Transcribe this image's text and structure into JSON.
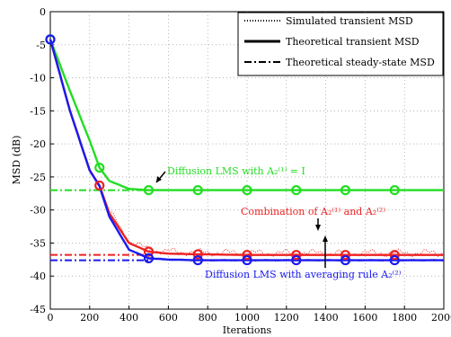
{
  "chart_data": {
    "type": "line",
    "title": "",
    "xlabel": "Iterations",
    "ylabel": "MSD (dB)",
    "xlim": [
      0,
      2000
    ],
    "ylim": [
      -45,
      0
    ],
    "x_ticks": [
      0,
      200,
      400,
      600,
      800,
      1000,
      1200,
      1400,
      1600,
      1800,
      2000
    ],
    "y_ticks": [
      0,
      -5,
      -10,
      -15,
      -20,
      -25,
      -30,
      -35,
      -40,
      -45
    ],
    "grid": true,
    "legend_position": "top-right",
    "legend": [
      {
        "label": "Simulated transient MSD",
        "style": "dotted"
      },
      {
        "label": "Theoretical transient MSD",
        "style": "solid"
      },
      {
        "label": "Theoretical steady-state MSD",
        "style": "dash-dot"
      }
    ],
    "series": [
      {
        "color": "#22dd22",
        "x": [
          0,
          100,
          200,
          250,
          300,
          400,
          500,
          600,
          750,
          1000,
          1250,
          1500,
          1750,
          2000
        ],
        "values": [
          -4.2,
          -12.0,
          -19.5,
          -23.6,
          -25.6,
          -26.8,
          -27.0,
          -27.0,
          -27.0,
          -27.0,
          -27.0,
          -27.0,
          -27.0,
          -27.0
        ],
        "markers_x": [
          0,
          250,
          500,
          750,
          1000,
          1250,
          1500,
          1750
        ],
        "steady_state": -27.0
      },
      {
        "color": "#ee2222",
        "x": [
          0,
          100,
          200,
          250,
          300,
          400,
          500,
          600,
          750,
          1000,
          1250,
          1500,
          1750,
          2000
        ],
        "values": [
          -4.2,
          -15.0,
          -24.0,
          -26.3,
          -30.5,
          -35.0,
          -36.3,
          -36.6,
          -36.7,
          -36.8,
          -36.8,
          -36.8,
          -36.8,
          -36.8
        ],
        "markers_x": [
          250,
          500,
          750,
          1000,
          1250,
          1500,
          1750
        ],
        "steady_state": -36.8
      },
      {
        "color": "#1a1aee",
        "x": [
          0,
          100,
          200,
          250,
          300,
          400,
          500,
          600,
          750,
          1000,
          1250,
          1500,
          1750,
          2000
        ],
        "values": [
          -4.2,
          -15.0,
          -24.0,
          -26.4,
          -31.0,
          -36.0,
          -37.3,
          -37.5,
          -37.6,
          -37.6,
          -37.6,
          -37.6,
          -37.6,
          -37.6
        ],
        "markers_x": [
          0,
          500,
          750,
          1000,
          1250,
          1500,
          1750
        ],
        "steady_state": -37.6
      }
    ],
    "annotations": [
      {
        "text": "Diffusion LMS with A₂⁽¹⁾ = I",
        "color": "#22dd22",
        "arrow_to_x": 500
      },
      {
        "text": "Combination of A₂⁽¹⁾ and A₂⁽²⁾",
        "color": "#ee2222",
        "arrow_to_x": 1360
      },
      {
        "text": "Diffusion LMS with averaging rule A₂⁽²⁾",
        "color": "#1a1aee",
        "arrow_to_x": 1360
      }
    ]
  }
}
